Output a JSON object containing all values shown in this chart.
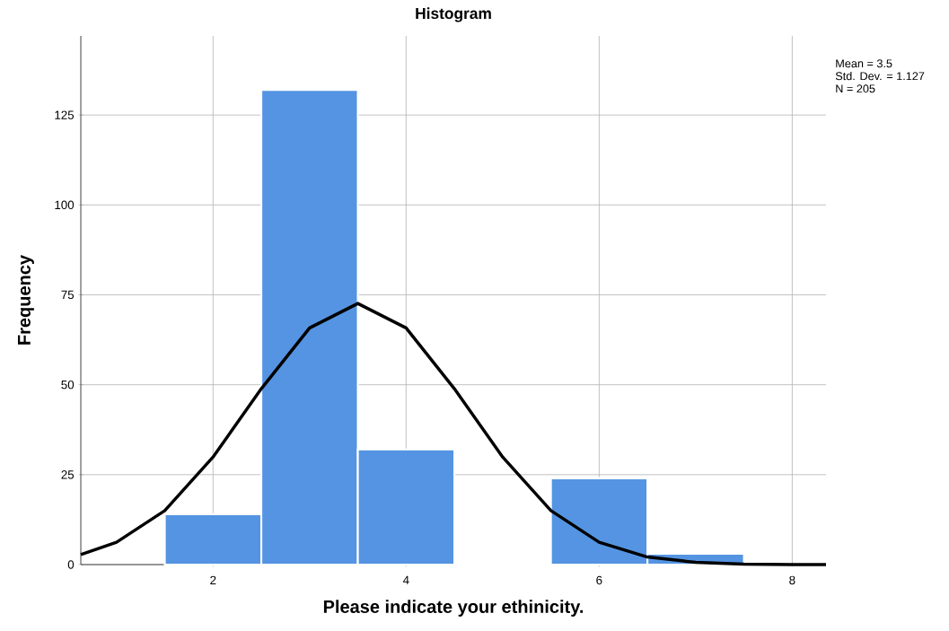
{
  "chart_data": {
    "type": "histogram",
    "title": "Histogram",
    "xlabel": "Please indicate your ethinicity.",
    "ylabel": "Frequency",
    "bins": [
      1.5,
      2.5,
      3.5,
      4.5,
      5.5,
      6.5,
      7.5
    ],
    "values": [
      14,
      132,
      32,
      0,
      24,
      3
    ],
    "color": "#5494e2",
    "series": [
      {
        "type": "line",
        "color": "#000000",
        "x": [
          0.63,
          1.0,
          1.5,
          2.0,
          2.5,
          3.0,
          3.5,
          4.0,
          4.5,
          5.0,
          5.5,
          6.0,
          6.5,
          7.0,
          7.5,
          8.0,
          8.35
        ],
        "values": [
          2.8,
          6.2,
          15.0,
          29.9,
          48.9,
          65.8,
          72.6,
          65.8,
          48.9,
          29.9,
          15.0,
          6.2,
          2.1,
          0.6,
          0.1,
          0.0,
          0.0
        ]
      }
    ],
    "xlim": [
      0.63,
      8.35
    ],
    "ylim": [
      0,
      147
    ],
    "xticks": [
      2,
      4,
      6,
      8
    ],
    "yticks": [
      0,
      25,
      50,
      75,
      100,
      125
    ],
    "grid": true,
    "marker": "none",
    "line_style": "solid",
    "annotations": [
      "Mean = 3.5",
      "Std. Dev. = 1.127",
      "N = 205"
    ]
  }
}
